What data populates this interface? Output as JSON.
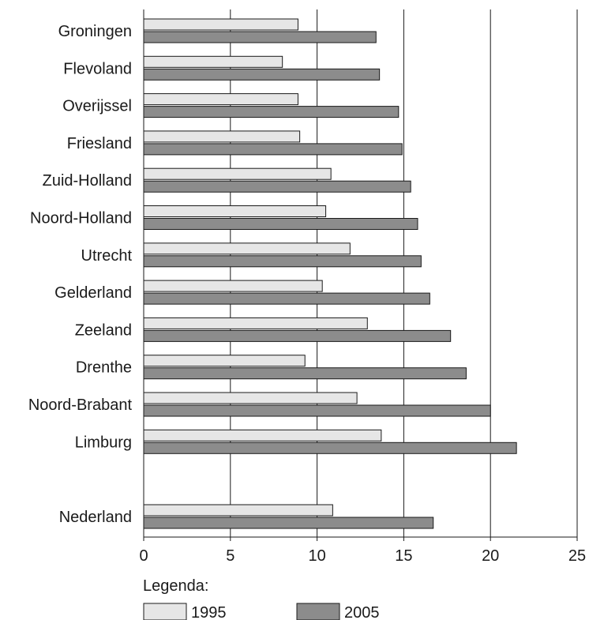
{
  "chart_data": {
    "type": "bar",
    "orientation": "horizontal",
    "categories": [
      "Groningen",
      "Flevoland",
      "Overijssel",
      "Friesland",
      "Zuid-Holland",
      "Noord-Holland",
      "Utrecht",
      "Gelderland",
      "Zeeland",
      "Drenthe",
      "Noord-Brabant",
      "Limburg",
      "Nederland"
    ],
    "series": [
      {
        "name": "1995",
        "color": "#e6e6e6",
        "values": [
          8.9,
          8.0,
          8.9,
          9.0,
          10.8,
          10.5,
          11.9,
          10.3,
          12.9,
          9.3,
          12.3,
          13.7,
          10.9
        ]
      },
      {
        "name": "2005",
        "color": "#8c8c8c",
        "values": [
          13.4,
          13.6,
          14.7,
          14.9,
          15.4,
          15.8,
          16.0,
          16.5,
          17.7,
          18.6,
          20.0,
          21.5,
          16.7
        ]
      }
    ],
    "xlim": [
      0,
      25
    ],
    "xticks": [
      "0",
      "5",
      "10",
      "15",
      "20",
      "25"
    ],
    "grid": "vertical",
    "legend": {
      "title": "Legenda:",
      "placement": "bottom-left"
    },
    "xlabel": "",
    "ylabel": "",
    "title": ""
  }
}
